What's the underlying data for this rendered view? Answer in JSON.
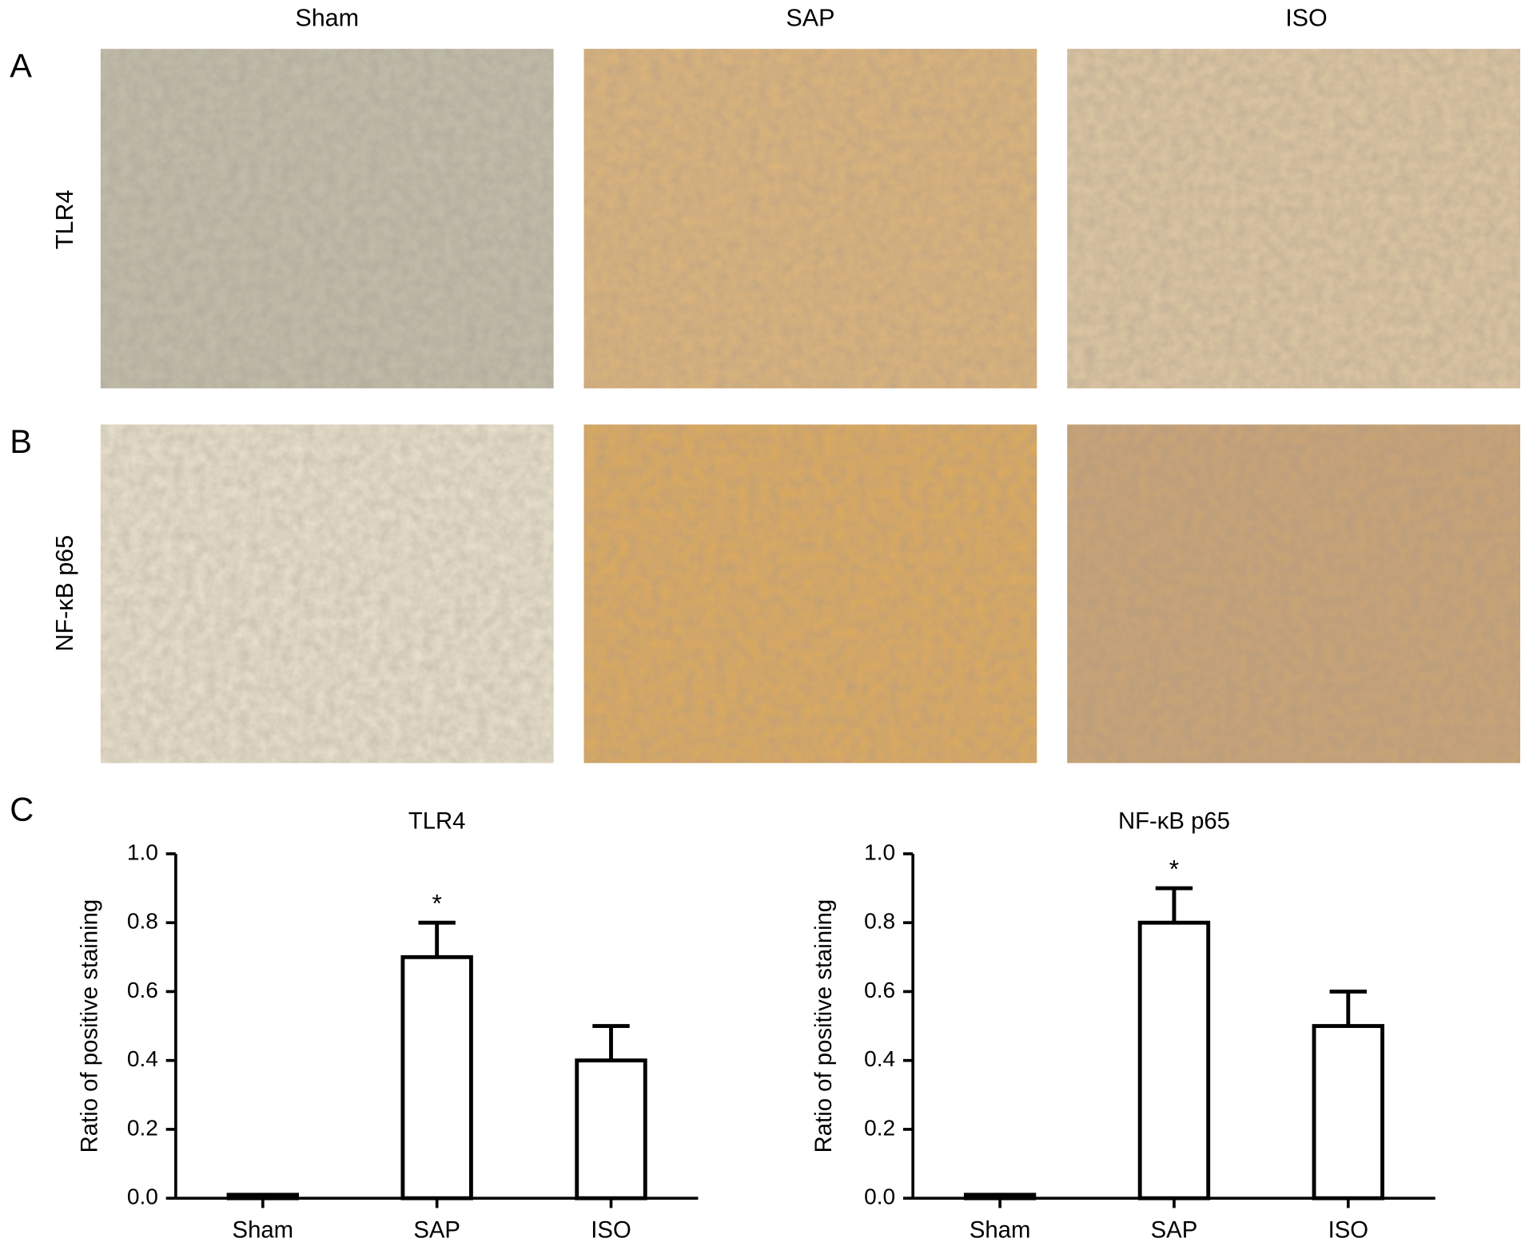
{
  "figure": {
    "panels": [
      "A",
      "B",
      "C"
    ],
    "columns": [
      "Sham",
      "SAP",
      "ISO"
    ],
    "rows": [
      "TLR4",
      "NF-κB p65"
    ]
  },
  "chart_data": [
    {
      "type": "bar",
      "title": "TLR4",
      "y_label": "Ratio of positive staining",
      "categories": [
        "Sham",
        "SAP",
        "ISO"
      ],
      "values": [
        0.01,
        0.7,
        0.4
      ],
      "errors": [
        0,
        0.1,
        0.1
      ],
      "color": "#ffffff",
      "ylim": [
        0,
        1
      ],
      "yticks": [
        {
          "value": 0,
          "label": "0.0"
        },
        0.2,
        0.4,
        0.6,
        0.8,
        {
          "value": 1,
          "label": "1.0"
        }
      ],
      "annotations": [
        {
          "text": "*",
          "category": "SAP"
        }
      ]
    },
    {
      "type": "bar",
      "title": "NF-κB p65",
      "y_label": "Ratio of positive staining",
      "categories": [
        "Sham",
        "SAP",
        "ISO"
      ],
      "values": [
        0.01,
        0.8,
        0.5
      ],
      "errors": [
        0,
        0.1,
        0.1
      ],
      "color": "#ffffff",
      "ylim": [
        0,
        1
      ],
      "yticks": [
        {
          "value": 0,
          "label": "0.0"
        },
        0.2,
        0.4,
        0.6,
        0.8,
        {
          "value": 1,
          "label": "1.0"
        }
      ],
      "annotations": [
        {
          "text": "*",
          "category": "SAP"
        }
      ]
    }
  ]
}
